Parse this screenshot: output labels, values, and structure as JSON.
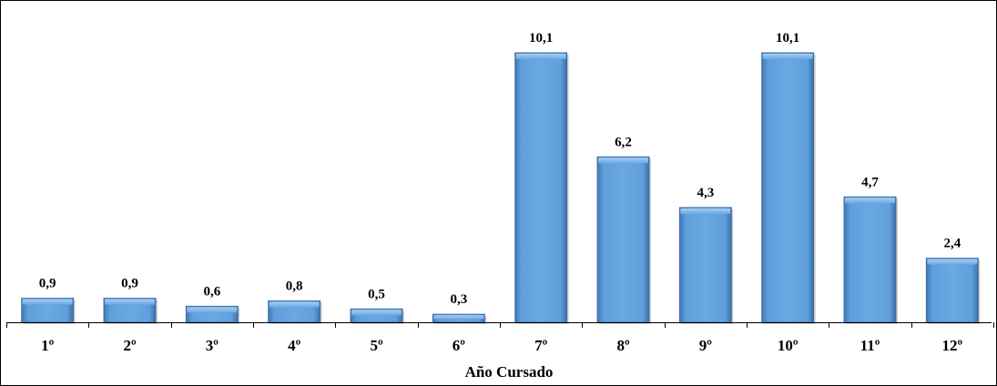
{
  "chart_data": {
    "type": "bar",
    "title": "",
    "xlabel": "Año Cursado",
    "ylabel": "",
    "categories": [
      "1º",
      "2º",
      "3º",
      "4º",
      "5º",
      "6º",
      "7º",
      "8º",
      "9º",
      "10º",
      "11º",
      "12º"
    ],
    "values": [
      0.9,
      0.9,
      0.6,
      0.8,
      0.5,
      0.3,
      10.1,
      6.2,
      4.3,
      10.1,
      4.7,
      2.4
    ],
    "value_labels": [
      "0,9",
      "0,9",
      "0,6",
      "0,8",
      "0,5",
      "0,3",
      "10,1",
      "6,2",
      "4,3",
      "10,1",
      "4,7",
      "2,4"
    ],
    "ylim": [
      0,
      10.1
    ],
    "grid": false,
    "legend": "none",
    "bar_color": "#5b9bd5"
  }
}
